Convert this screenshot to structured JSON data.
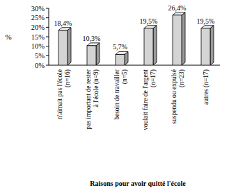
{
  "chart_data": {
    "type": "bar",
    "x_label": "Raisons pour avoir quitté l'école",
    "y_label": "%",
    "categories": [
      "n'aimait pas l'école\n(n=16)",
      "pas important de rester\nà l'école (n=9)",
      "besoin de travailler\n(n=5)",
      "voulait faire de l'argent\n(n=17)",
      "suspendu ou expulsé\n(n=23)",
      "autres (n=17)"
    ],
    "values": [
      18.4,
      10.3,
      5.7,
      19.5,
      26.4,
      19.5
    ],
    "value_labels": [
      "18,4%",
      "10,3%",
      "5,7%",
      "19,5%",
      "26,4%",
      "19,5%"
    ],
    "data_labels": true,
    "color": "#d4d4d4",
    "ylim": [
      0,
      30
    ],
    "yticks": [
      {
        "value": 0,
        "label": "0%"
      },
      {
        "value": 5,
        "label": "5%"
      },
      {
        "value": 10,
        "label": "10%"
      },
      {
        "value": 15,
        "label": "15%"
      },
      {
        "value": 20,
        "label": "20%"
      },
      {
        "value": 25,
        "label": "25%"
      },
      {
        "value": 30,
        "label": "30%"
      }
    ],
    "grid": false
  }
}
